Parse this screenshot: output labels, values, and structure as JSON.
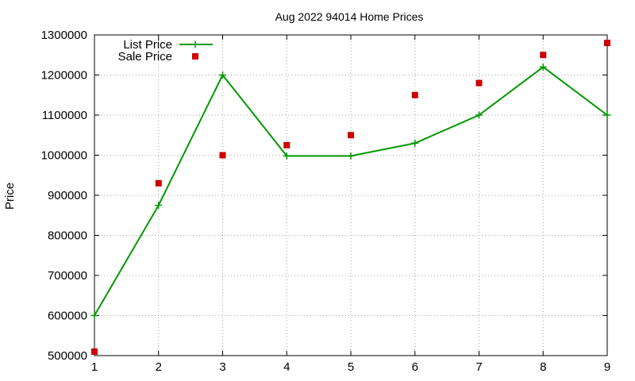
{
  "chart_data": {
    "type": "line",
    "title": "Aug 2022 94014 Home Prices",
    "xlabel": "",
    "ylabel": "Price",
    "x": [
      1,
      2,
      3,
      4,
      5,
      6,
      7,
      8,
      9
    ],
    "xlim": [
      1,
      9
    ],
    "ylim": [
      500000,
      1300000
    ],
    "xticks": [
      1,
      2,
      3,
      4,
      5,
      6,
      7,
      8,
      9
    ],
    "yticks": [
      500000,
      600000,
      700000,
      800000,
      900000,
      1000000,
      1100000,
      1200000,
      1300000
    ],
    "grid": true,
    "legend_position": "top-left",
    "series": [
      {
        "name": "List Price",
        "style": "line+cross",
        "color": "#009900",
        "values": [
          600000,
          875000,
          1200000,
          998000,
          998000,
          1030000,
          1100000,
          1220000,
          1100000
        ]
      },
      {
        "name": "Sale Price",
        "style": "square",
        "color": "#cc0000",
        "values": [
          510000,
          930000,
          1000000,
          1025000,
          1050000,
          1150000,
          1180000,
          1250000,
          1280000
        ]
      }
    ]
  }
}
